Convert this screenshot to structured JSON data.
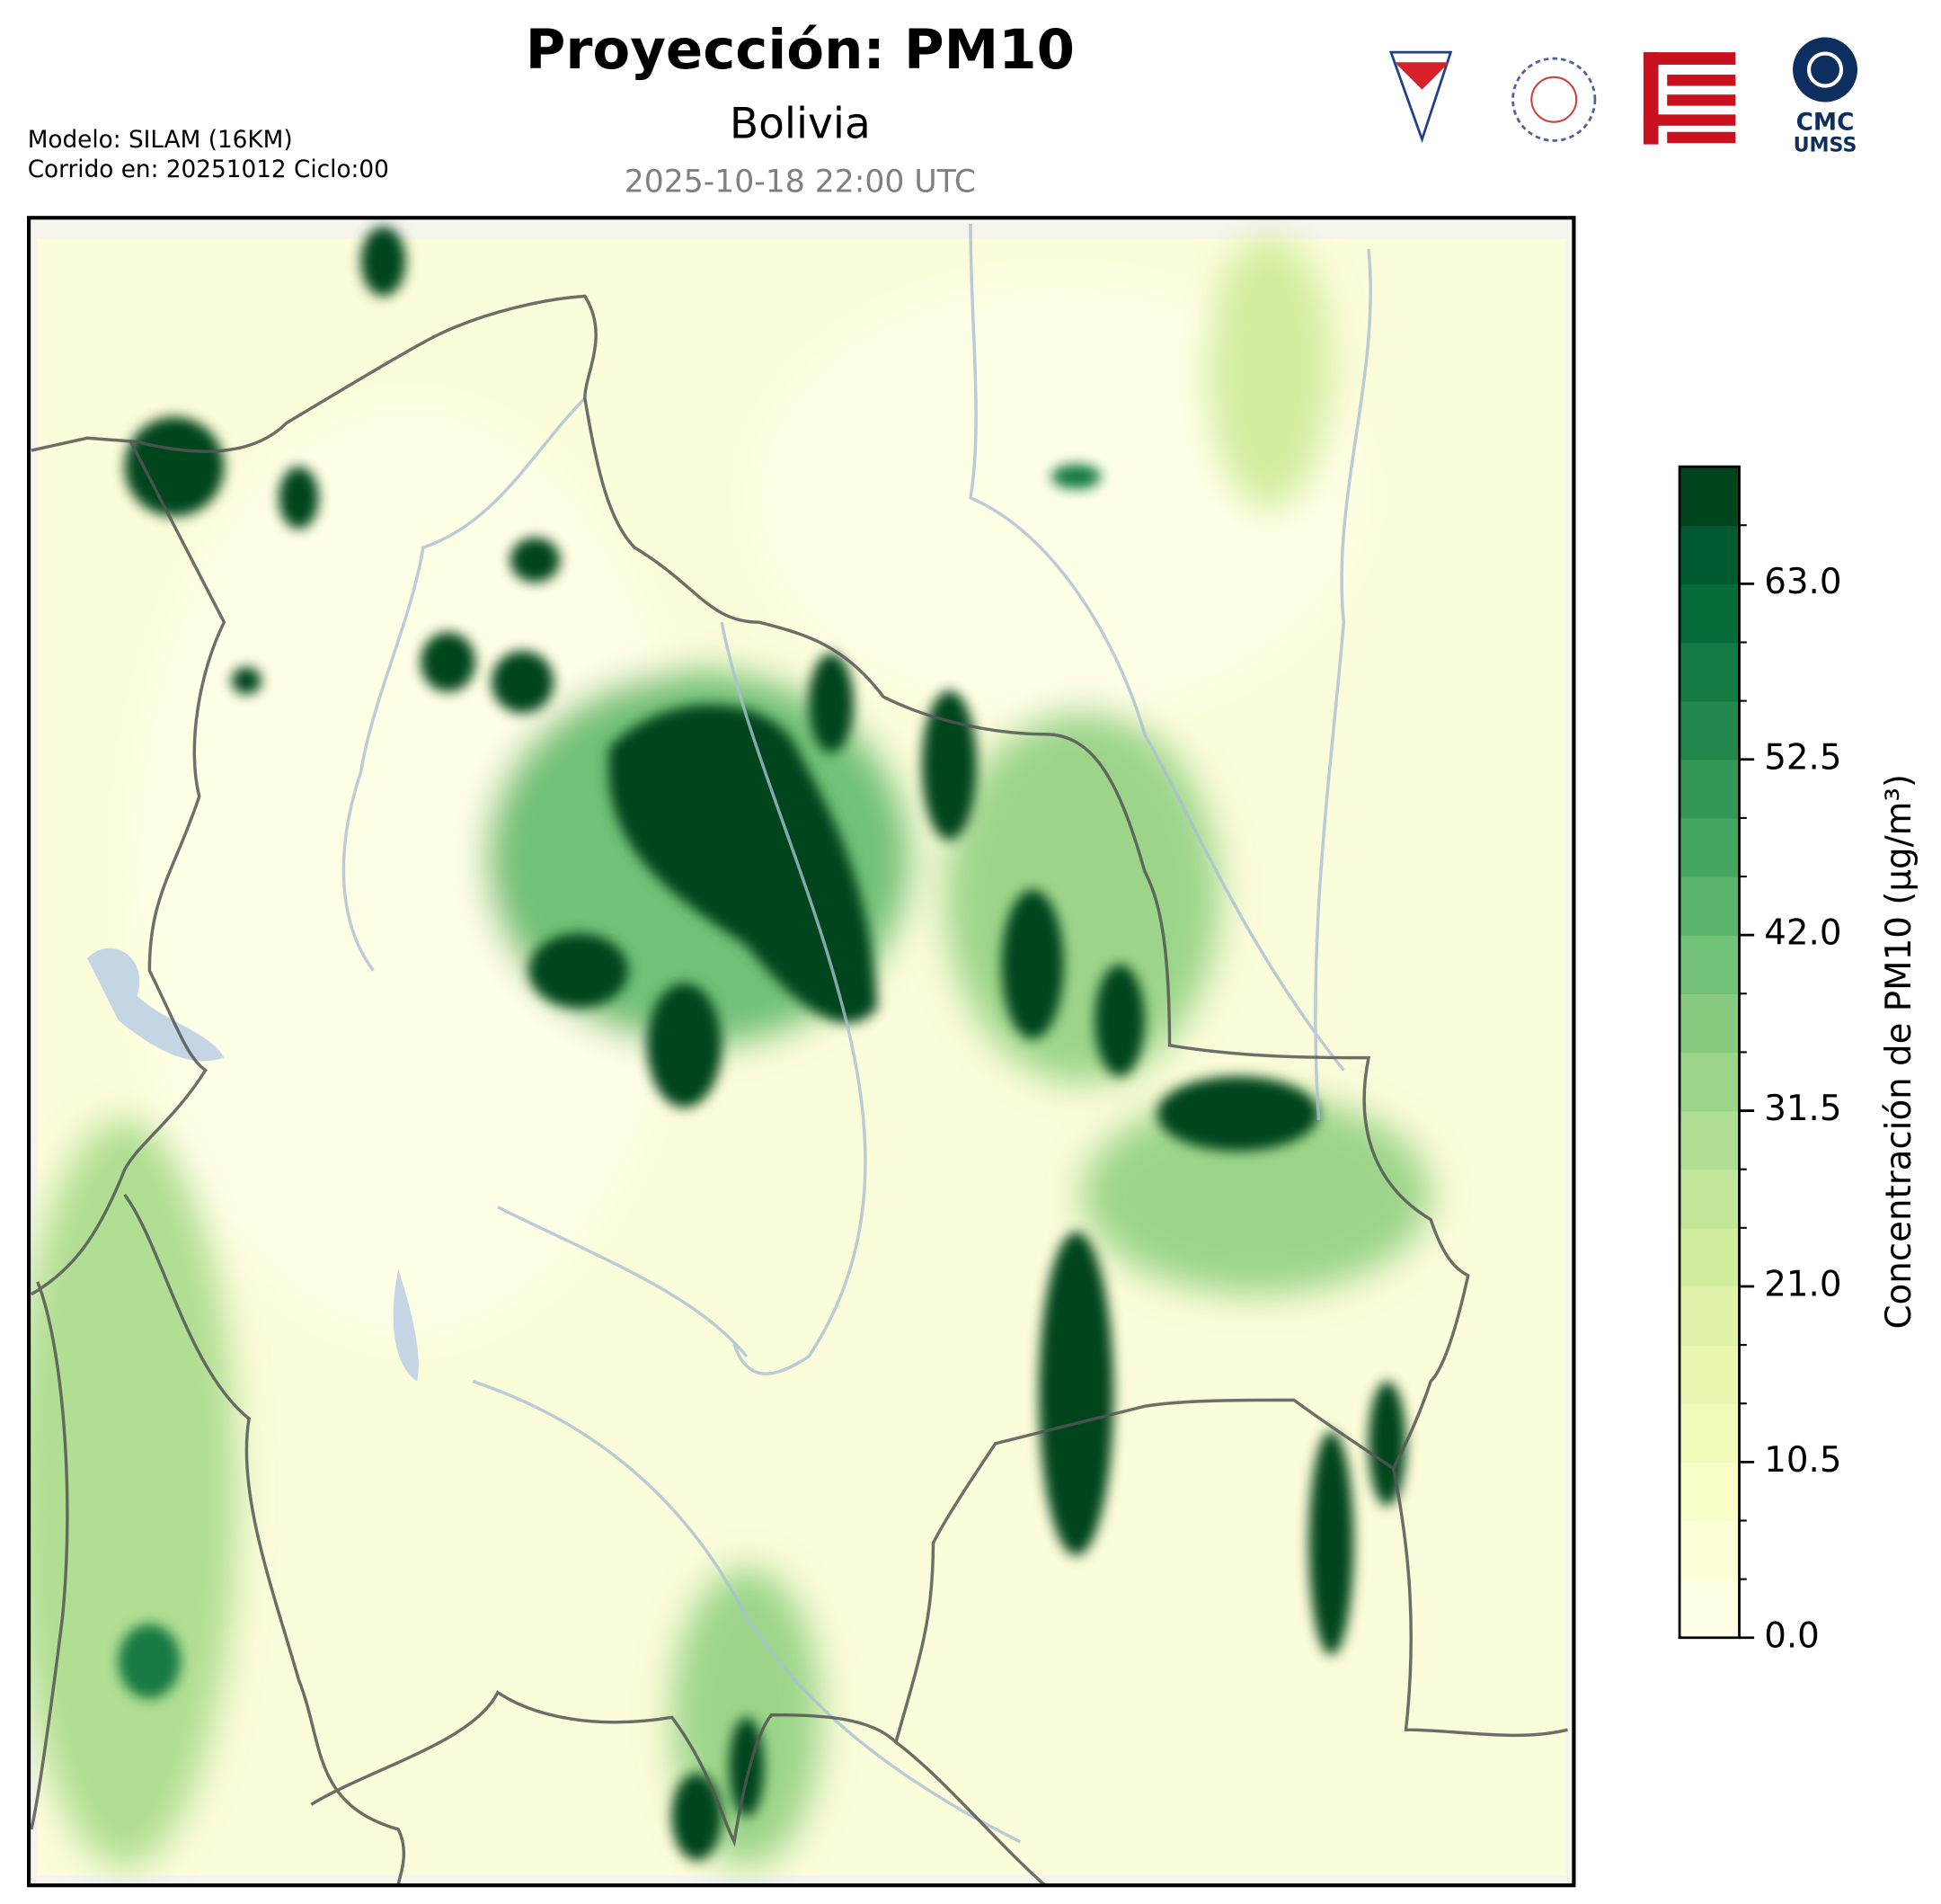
{
  "header": {
    "title": "Proyección: PM10",
    "subtitle": "Bolivia",
    "date": "2025-10-18 22:00 UTC",
    "model": "Modelo: SILAM (16KM)",
    "run": "Corrido en: 20251012 Ciclo:00"
  },
  "logos": {
    "cmc": "CMC",
    "umss": "UMSS"
  },
  "colorbar": {
    "label": "Concentración de PM10 (µg/m³)",
    "lim": [
      0,
      70
    ],
    "ticks": [
      {
        "value": 0,
        "label": "0.0"
      },
      10.5,
      {
        "value": 21,
        "label": "21.0"
      },
      31.5,
      {
        "value": 42,
        "label": "42.0"
      },
      52.5,
      {
        "value": 63,
        "label": "63.0"
      }
    ],
    "colors": [
      "#ffffe5",
      "#fdfed6",
      "#f9fdc8",
      "#f4fbba",
      "#ebf7b1",
      "#e0f3a8",
      "#d2ed9e",
      "#c2e699",
      "#b0de92",
      "#9cd58a",
      "#87cb81",
      "#71c177",
      "#5bb56d",
      "#44a660",
      "#349755",
      "#23884c",
      "#137a43",
      "#046b38",
      "#005a31",
      "#00441b"
    ]
  }
}
